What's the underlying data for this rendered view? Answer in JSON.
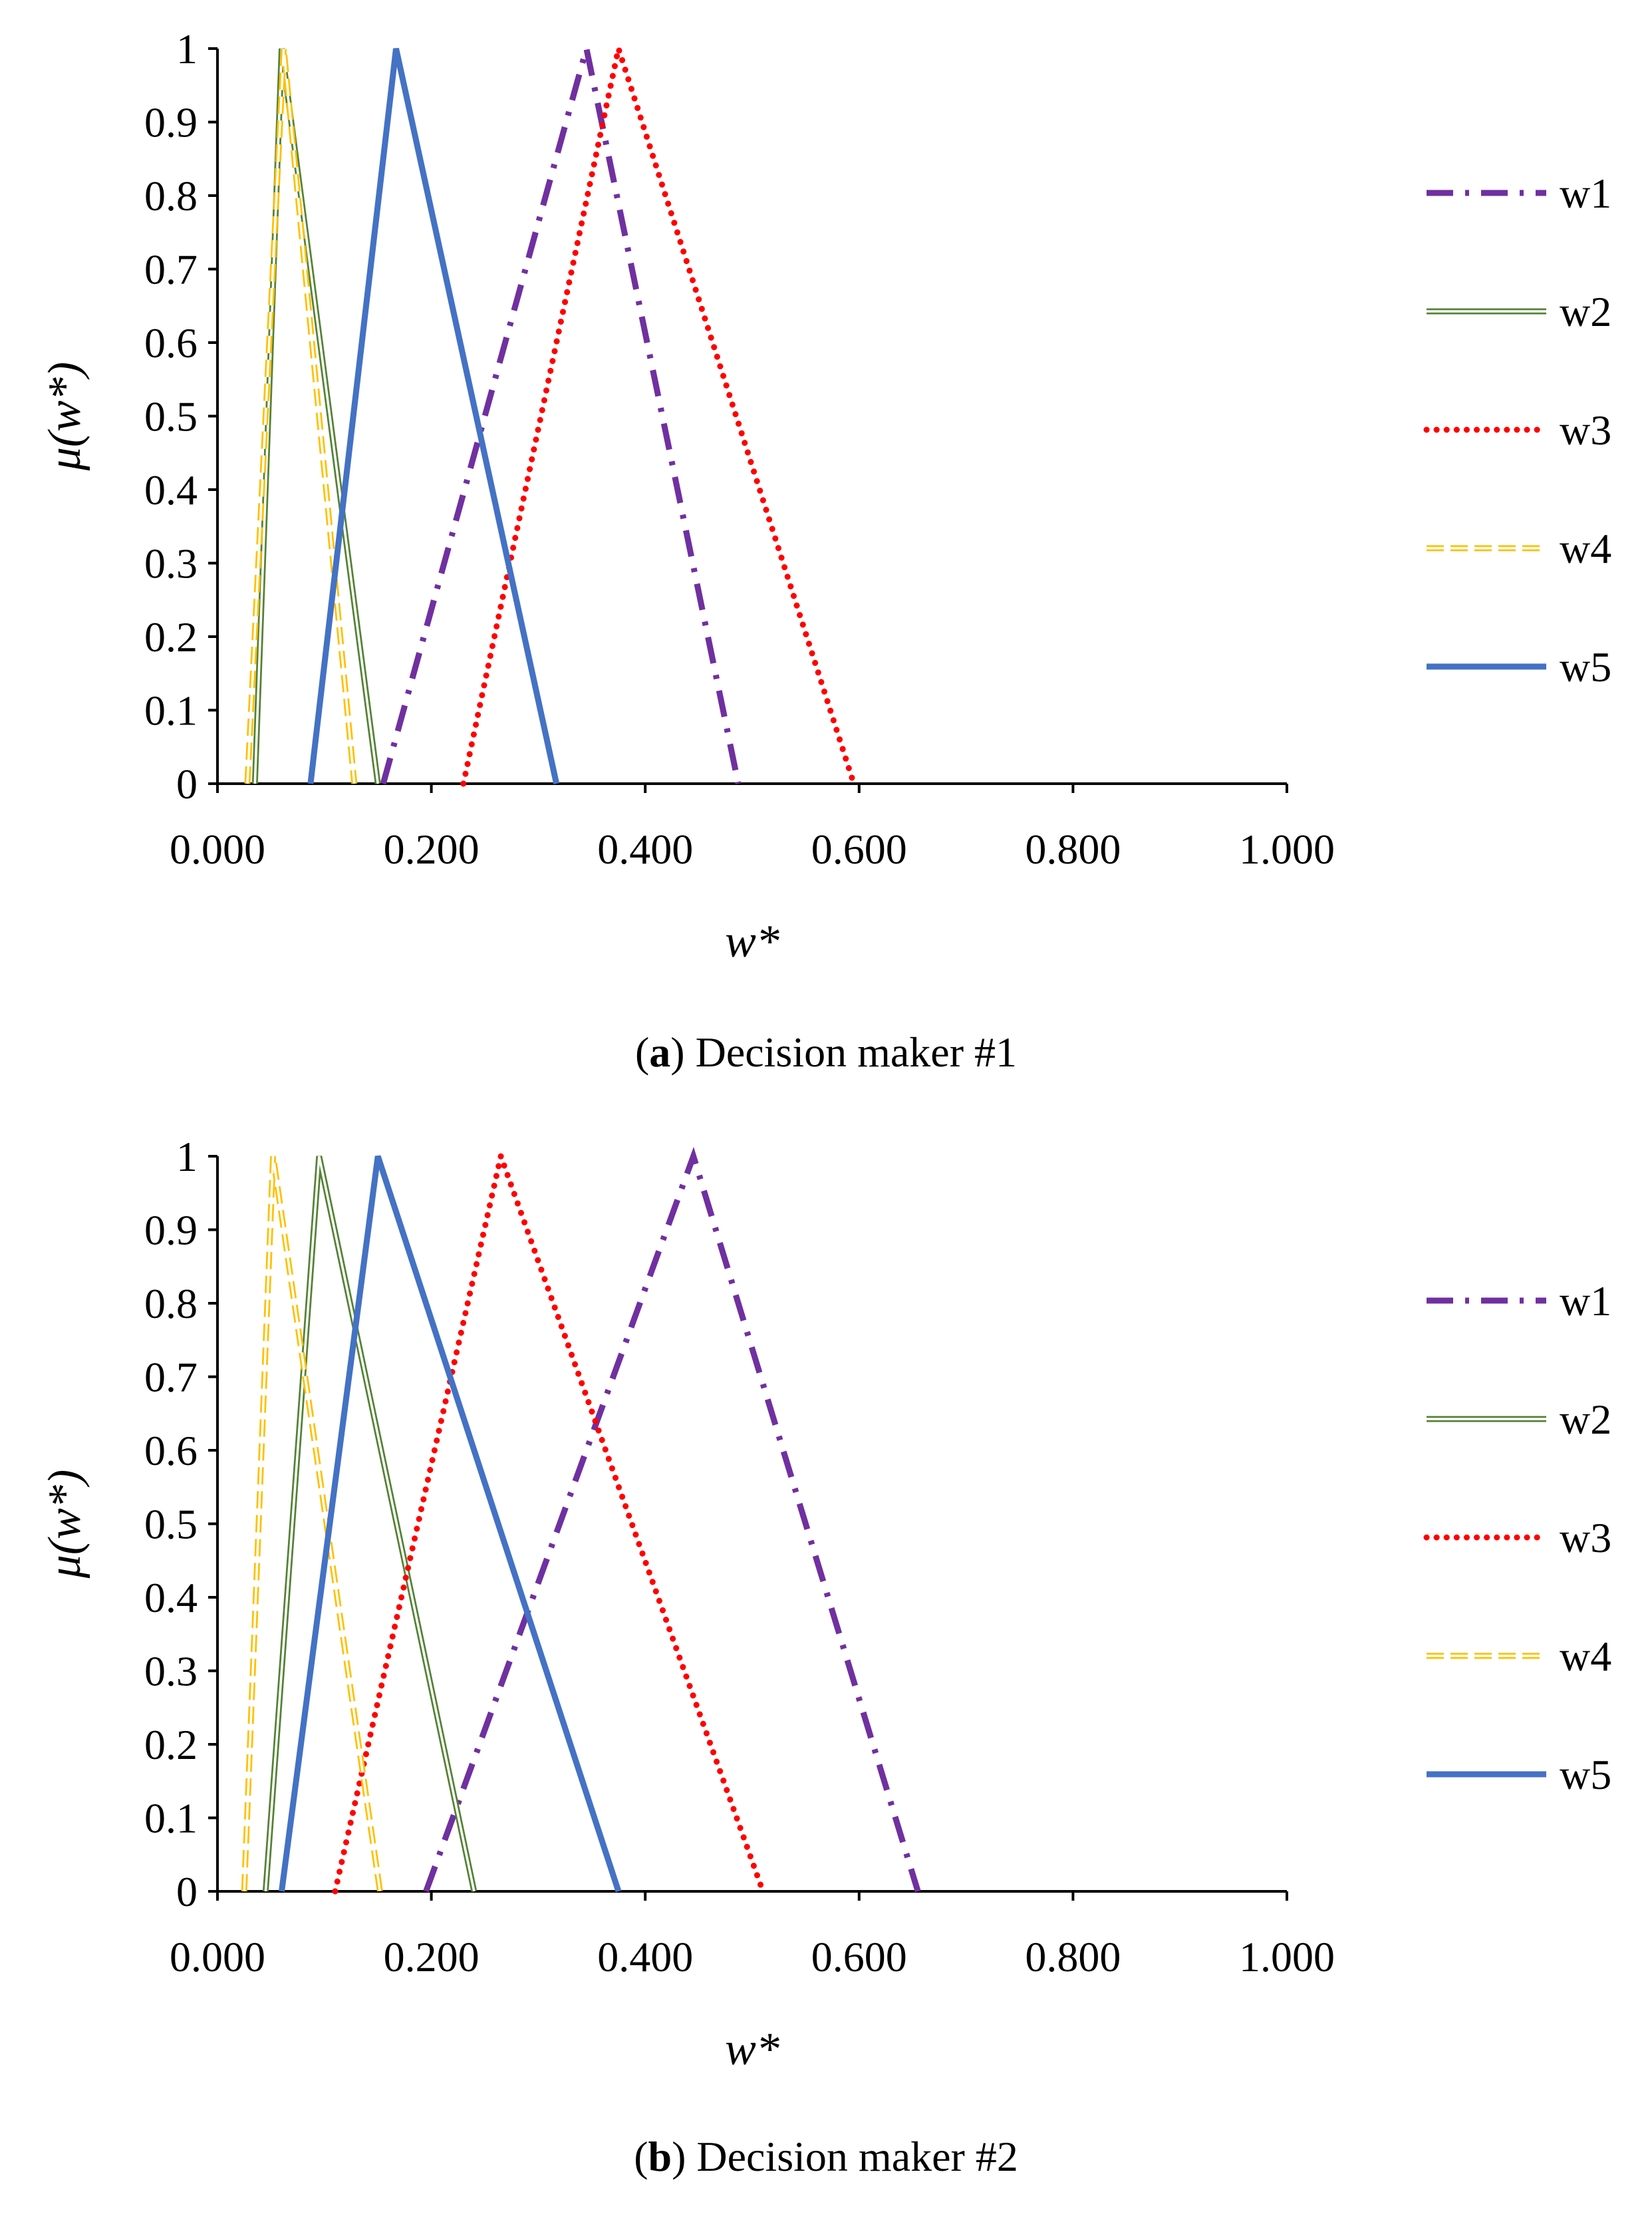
{
  "figure": {
    "caption_a_letter": "a",
    "caption_a_text": "Decision maker #1",
    "caption_b_letter": "b",
    "caption_b_text": "Decision maker #2"
  },
  "chart_data": [
    {
      "type": "line",
      "title": "",
      "xlabel": "w*",
      "ylabel": "μ(w*)",
      "xlim": [
        0,
        1
      ],
      "ylim": [
        0,
        1
      ],
      "xticks": [
        "0.000",
        "0.200",
        "0.400",
        "0.600",
        "0.800",
        "1.000"
      ],
      "yticks": [
        "0",
        "0.1",
        "0.2",
        "0.3",
        "0.4",
        "0.5",
        "0.6",
        "0.7",
        "0.8",
        "0.9",
        "1"
      ],
      "legend_position": "right",
      "series": [
        {
          "name": "w1",
          "style": "dashdot",
          "color": "#7030A0",
          "x": [
            0.155,
            0.345,
            0.487
          ],
          "y": [
            0,
            1,
            0
          ]
        },
        {
          "name": "w2",
          "style": "double",
          "color": "#548235",
          "x": [
            0.035,
            0.06,
            0.15
          ],
          "y": [
            0,
            1,
            0
          ]
        },
        {
          "name": "w3",
          "style": "dotted",
          "color": "#FF0000",
          "x": [
            0.23,
            0.375,
            0.595
          ],
          "y": [
            0,
            1,
            0
          ]
        },
        {
          "name": "w4",
          "style": "dashed-double",
          "color": "#FFC000",
          "x": [
            0.028,
            0.062,
            0.128
          ],
          "y": [
            0,
            1,
            0
          ]
        },
        {
          "name": "w5",
          "style": "solid",
          "color": "#4472C4",
          "x": [
            0.087,
            0.167,
            0.317
          ],
          "y": [
            0,
            1,
            0
          ]
        }
      ]
    },
    {
      "type": "line",
      "title": "",
      "xlabel": "w*",
      "ylabel": "μ(w*)",
      "xlim": [
        0,
        1
      ],
      "ylim": [
        0,
        1
      ],
      "xticks": [
        "0.000",
        "0.200",
        "0.400",
        "0.600",
        "0.800",
        "1.000"
      ],
      "yticks": [
        "0",
        "0.1",
        "0.2",
        "0.3",
        "0.4",
        "0.5",
        "0.6",
        "0.7",
        "0.8",
        "0.9",
        "1"
      ],
      "legend_position": "right",
      "series": [
        {
          "name": "w1",
          "style": "dashdot",
          "color": "#7030A0",
          "x": [
            0.195,
            0.445,
            0.655
          ],
          "y": [
            0,
            1,
            0
          ]
        },
        {
          "name": "w2",
          "style": "double",
          "color": "#548235",
          "x": [
            0.045,
            0.095,
            0.24
          ],
          "y": [
            0,
            1,
            0
          ]
        },
        {
          "name": "w3",
          "style": "dotted",
          "color": "#FF0000",
          "x": [
            0.11,
            0.265,
            0.51
          ],
          "y": [
            0,
            1,
            0
          ]
        },
        {
          "name": "w4",
          "style": "dashed-double",
          "color": "#FFC000",
          "x": [
            0.025,
            0.052,
            0.152
          ],
          "y": [
            0,
            1,
            0
          ]
        },
        {
          "name": "w5",
          "style": "solid",
          "color": "#4472C4",
          "x": [
            0.06,
            0.15,
            0.375
          ],
          "y": [
            0,
            1,
            0
          ]
        }
      ]
    }
  ]
}
